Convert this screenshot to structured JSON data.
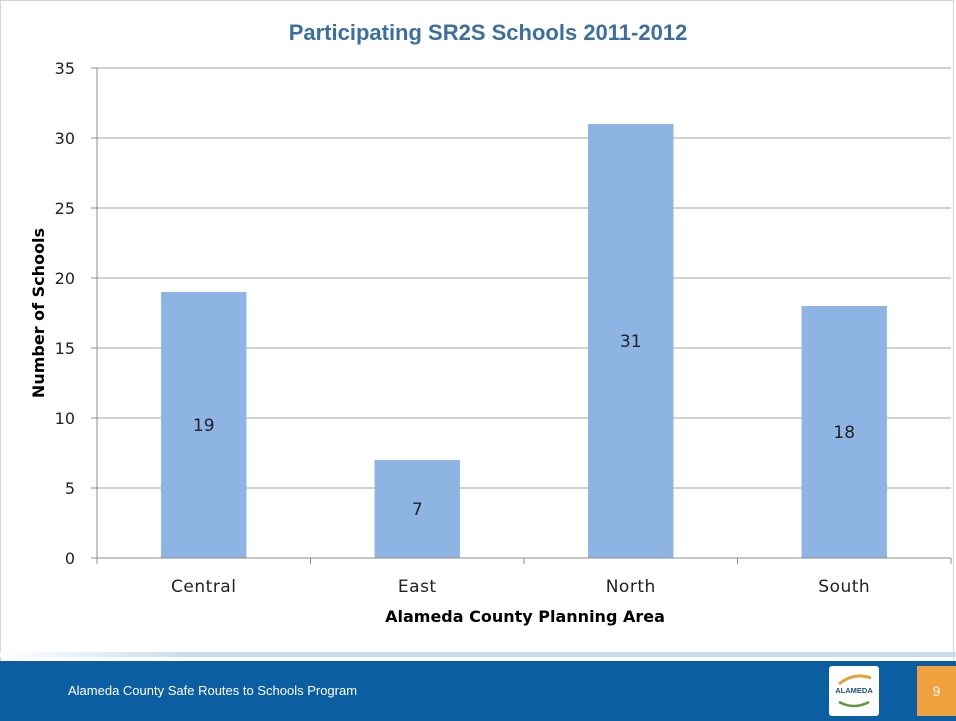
{
  "chart_data": {
    "type": "bar",
    "title": "Participating SR2S Schools 2011-2012",
    "xlabel": "Alameda County Planning Area",
    "ylabel": "Number of Schools",
    "categories": [
      "Central",
      "East",
      "North",
      "South"
    ],
    "values": [
      19,
      7,
      31,
      18
    ],
    "data_labels": [
      "19",
      "7",
      "31",
      "18"
    ],
    "ylim": [
      0,
      35
    ],
    "yticks": [
      0,
      5,
      10,
      15,
      20,
      25,
      30,
      35
    ],
    "grid": true,
    "legend": "none",
    "bar_color": "#8eb4e3"
  },
  "footer": {
    "program_name": "Alameda County Safe Routes to Schools Program",
    "page_number": "9",
    "logo_text": "ALAMEDA"
  },
  "colors": {
    "title": "#3b6fa0",
    "footer_band": "#0b5ea1",
    "page_badge": "#f0a03c"
  }
}
